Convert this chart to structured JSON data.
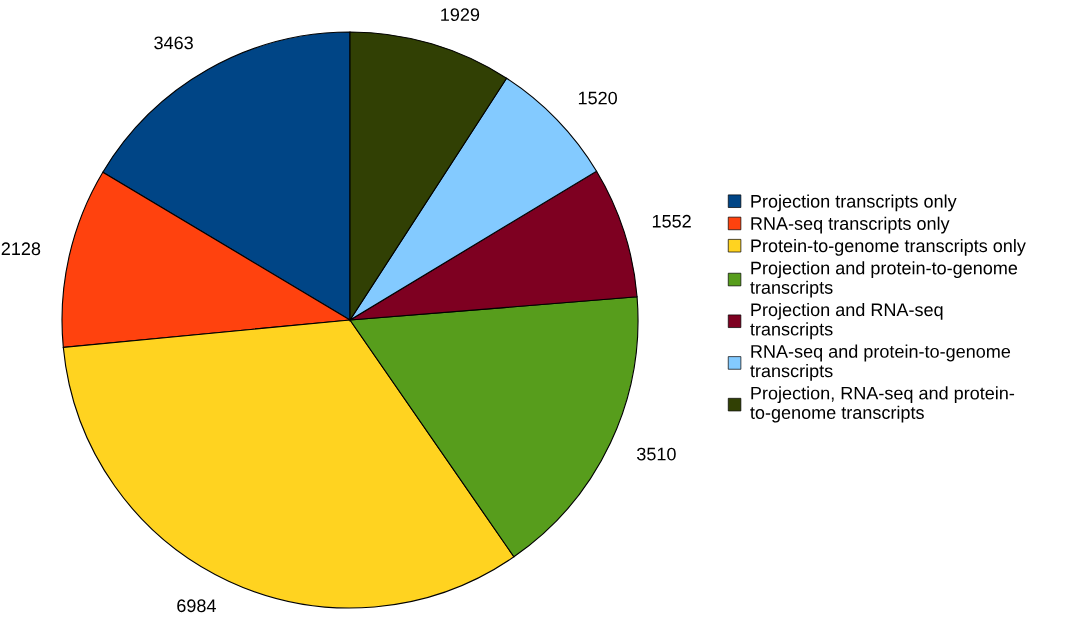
{
  "chart_data": {
    "type": "pie",
    "categories": [
      "Projection transcripts only",
      "RNA-seq transcripts only",
      "Protein-to-genome transcripts only",
      "Projection and protein-to-genome\ntranscripts",
      "Projection and RNA-seq\ntranscripts",
      "RNA-seq and protein-to-genome\ntranscripts",
      "Projection, RNA-seq and protein-\nto-genome transcripts"
    ],
    "values": [
      3463,
      2128,
      6984,
      3510,
      1552,
      1520,
      1929
    ],
    "colors": [
      "#004586",
      "#ff420e",
      "#ffd320",
      "#579d1c",
      "#7e0021",
      "#83caff",
      "#314004"
    ],
    "data_labels": true,
    "legend": "right"
  }
}
